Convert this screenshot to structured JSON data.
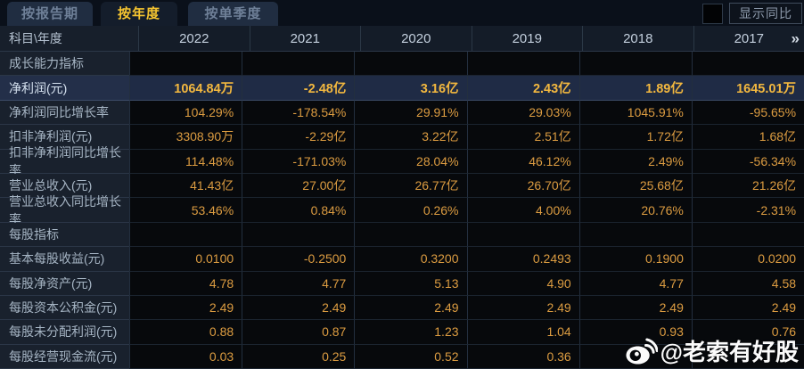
{
  "tabs": [
    {
      "label": "按报告期",
      "active": false
    },
    {
      "label": "按年度",
      "active": true
    },
    {
      "label": "按单季度",
      "active": false
    }
  ],
  "toolbar": {
    "show_yoy_label": "显示同比",
    "yoy_checkbox_checked": false
  },
  "table": {
    "corner_header": "科目\\年度",
    "years": [
      "2022",
      "2021",
      "2020",
      "2019",
      "2018",
      "2017"
    ],
    "more_columns_icon": "»",
    "rows": [
      {
        "type": "section",
        "label": "成长能力指标",
        "values": [
          "",
          "",
          "",
          "",
          "",
          ""
        ]
      },
      {
        "type": "data",
        "highlight": true,
        "label": "净利润(元)",
        "values": [
          "1064.84万",
          "-2.48亿",
          "3.16亿",
          "2.43亿",
          "1.89亿",
          "1645.01万"
        ]
      },
      {
        "type": "data",
        "label": "净利润同比增长率",
        "values": [
          "104.29%",
          "-178.54%",
          "29.91%",
          "29.03%",
          "1045.91%",
          "-95.65%"
        ]
      },
      {
        "type": "data",
        "label": "扣非净利润(元)",
        "values": [
          "3308.90万",
          "-2.29亿",
          "3.22亿",
          "2.51亿",
          "1.72亿",
          "1.68亿"
        ]
      },
      {
        "type": "data",
        "label": "扣非净利润同比增长率",
        "values": [
          "114.48%",
          "-171.03%",
          "28.04%",
          "46.12%",
          "2.49%",
          "-56.34%"
        ]
      },
      {
        "type": "data",
        "label": "营业总收入(元)",
        "values": [
          "41.43亿",
          "27.00亿",
          "26.77亿",
          "26.70亿",
          "25.68亿",
          "21.26亿"
        ]
      },
      {
        "type": "data",
        "label": "营业总收入同比增长率",
        "values": [
          "53.46%",
          "0.84%",
          "0.26%",
          "4.00%",
          "20.76%",
          "-2.31%"
        ]
      },
      {
        "type": "section",
        "label": "每股指标",
        "values": [
          "",
          "",
          "",
          "",
          "",
          ""
        ]
      },
      {
        "type": "data",
        "label": "基本每股收益(元)",
        "values": [
          "0.0100",
          "-0.2500",
          "0.3200",
          "0.2493",
          "0.1900",
          "0.0200"
        ]
      },
      {
        "type": "data",
        "label": "每股净资产(元)",
        "values": [
          "4.78",
          "4.77",
          "5.13",
          "4.90",
          "4.77",
          "4.58"
        ]
      },
      {
        "type": "data",
        "label": "每股资本公积金(元)",
        "values": [
          "2.49",
          "2.49",
          "2.49",
          "2.49",
          "2.49",
          "2.49"
        ]
      },
      {
        "type": "data",
        "label": "每股未分配利润(元)",
        "values": [
          "0.88",
          "0.87",
          "1.23",
          "1.04",
          "0.93",
          "0.76"
        ]
      },
      {
        "type": "data",
        "label": "每股经营现金流(元)",
        "values": [
          "0.03",
          "0.25",
          "0.52",
          "0.36",
          "",
          ""
        ]
      }
    ]
  },
  "watermark": {
    "handle": "@老索有好股",
    "icon": "weibo-icon"
  },
  "colors": {
    "value_orange": "#dc9c41",
    "highlight_gold": "#f3b83f",
    "active_tab_text": "#f5c430",
    "highlight_row_bg": "#1f2b45",
    "label_column_bg": "#19212d",
    "grid_line": "#2b3846"
  }
}
